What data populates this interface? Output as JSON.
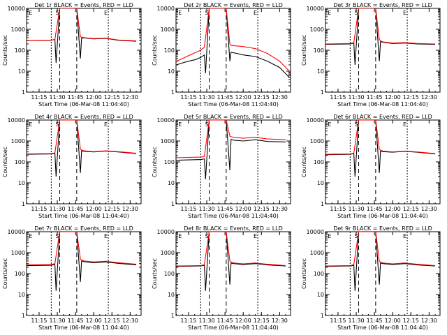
{
  "xlabel": "Start Time (06-Mar-08 11:04:40)",
  "ylabel": "Counts/sec",
  "x_tick_labels": [
    "11:15",
    "11:30",
    "11:45",
    "12:00",
    "12:15",
    "12:30"
  ],
  "y_tick_labels": [
    "1",
    "10",
    "100",
    "1000",
    "10000"
  ],
  "colors": {
    "events": "#000000",
    "lld": "#ff0000",
    "axes": "#000000",
    "background": "#ffffff"
  },
  "chart_data": [
    {
      "type": "line",
      "title": "Det 1r BLACK = Events, RED = LLD",
      "yscale": "log",
      "ylim": [
        1,
        10000
      ],
      "xlim": [
        "11:04:40",
        "12:39:00"
      ],
      "grid": false,
      "markers": [
        "E",
        "S",
        "E"
      ],
      "series": [
        {
          "name": "Events",
          "x": [
            "11:05",
            "11:25",
            "11:28",
            "11:29",
            "11:32",
            "11:46",
            "11:49",
            "11:50",
            "11:52",
            "12:00",
            "12:10",
            "12:20",
            "12:35"
          ],
          "values": [
            290,
            300,
            330,
            25,
            10000,
            10000,
            40,
            380,
            390,
            350,
            370,
            300,
            270
          ]
        },
        {
          "name": "LLD",
          "x": [
            "11:05",
            "11:25",
            "11:28",
            "11:32",
            "11:46",
            "11:49",
            "11:50",
            "11:52",
            "12:00",
            "12:10",
            "12:20",
            "12:35"
          ],
          "values": [
            290,
            300,
            330,
            10000,
            10000,
            450,
            420,
            400,
            360,
            380,
            310,
            280
          ]
        }
      ]
    },
    {
      "type": "line",
      "title": "Det 2r BLACK = Events, RED = LLD",
      "yscale": "log",
      "ylim": [
        1,
        10000
      ],
      "xlim": [
        "11:04:40",
        "12:39:00"
      ],
      "grid": false,
      "markers": [
        "E",
        "S",
        "E"
      ],
      "series": [
        {
          "name": "Events",
          "x": [
            "11:05",
            "11:10",
            "11:15",
            "11:20",
            "11:25",
            "11:28",
            "11:29",
            "11:32",
            "11:46",
            "11:49",
            "11:50",
            "11:55",
            "12:00",
            "12:10",
            "12:20",
            "12:30",
            "12:38"
          ],
          "values": [
            20,
            25,
            30,
            35,
            45,
            60,
            8,
            10000,
            10000,
            30,
            80,
            70,
            60,
            50,
            30,
            15,
            5
          ]
        },
        {
          "name": "LLD",
          "x": [
            "11:05",
            "11:10",
            "11:15",
            "11:20",
            "11:25",
            "11:28",
            "11:32",
            "11:46",
            "11:49",
            "11:50",
            "11:55",
            "12:00",
            "12:10",
            "12:20",
            "12:30",
            "12:38"
          ],
          "values": [
            30,
            40,
            55,
            75,
            100,
            140,
            10000,
            10000,
            200,
            170,
            160,
            150,
            120,
            70,
            30,
            10
          ]
        }
      ]
    },
    {
      "type": "line",
      "title": "Det 3r BLACK = Events, RED = LLD",
      "yscale": "log",
      "ylim": [
        1,
        10000
      ],
      "xlim": [
        "11:04:40",
        "12:39:00"
      ],
      "grid": false,
      "markers": [
        "E",
        "S",
        "E"
      ],
      "series": [
        {
          "name": "Events",
          "x": [
            "11:05",
            "11:25",
            "11:28",
            "11:29",
            "11:32",
            "11:46",
            "11:49",
            "11:50",
            "11:52",
            "12:00",
            "12:10",
            "12:20",
            "12:35"
          ],
          "values": [
            190,
            200,
            220,
            20,
            10000,
            10000,
            30,
            260,
            240,
            210,
            220,
            200,
            190
          ]
        },
        {
          "name": "LLD",
          "x": [
            "11:05",
            "11:25",
            "11:28",
            "11:32",
            "11:46",
            "11:49",
            "11:50",
            "11:52",
            "12:00",
            "12:10",
            "12:20",
            "12:35"
          ],
          "values": [
            200,
            210,
            230,
            10000,
            10000,
            330,
            280,
            250,
            220,
            230,
            210,
            200
          ]
        }
      ]
    },
    {
      "type": "line",
      "title": "Det 4r BLACK = Events, RED = LLD",
      "yscale": "log",
      "ylim": [
        1,
        10000
      ],
      "xlim": [
        "11:04:40",
        "12:39:00"
      ],
      "grid": false,
      "markers": [
        "E",
        "S",
        "E"
      ],
      "series": [
        {
          "name": "Events",
          "x": [
            "11:05",
            "11:25",
            "11:28",
            "11:29",
            "11:32",
            "11:46",
            "11:49",
            "11:50",
            "11:52",
            "12:00",
            "12:10",
            "12:20",
            "12:35"
          ],
          "values": [
            230,
            240,
            260,
            20,
            10000,
            10000,
            30,
            340,
            320,
            300,
            330,
            300,
            250
          ]
        },
        {
          "name": "LLD",
          "x": [
            "11:05",
            "11:25",
            "11:28",
            "11:32",
            "11:46",
            "11:49",
            "11:50",
            "11:52",
            "12:00",
            "12:10",
            "12:20",
            "12:35"
          ],
          "values": [
            240,
            250,
            270,
            10000,
            10000,
            420,
            370,
            340,
            310,
            340,
            310,
            260
          ]
        }
      ]
    },
    {
      "type": "line",
      "title": "Det 5r BLACK = Events, RED = LLD",
      "yscale": "log",
      "ylim": [
        1,
        10000
      ],
      "xlim": [
        "11:04:40",
        "12:39:00"
      ],
      "grid": false,
      "markers": [
        "E",
        "S",
        "E"
      ],
      "series": [
        {
          "name": "Events",
          "x": [
            "11:05",
            "11:25",
            "11:28",
            "11:29",
            "11:32",
            "11:46",
            "11:49",
            "11:50",
            "11:52",
            "12:00",
            "12:10",
            "12:20",
            "12:35"
          ],
          "values": [
            120,
            130,
            140,
            15,
            10000,
            10000,
            40,
            1200,
            1100,
            1000,
            1150,
            950,
            900
          ]
        },
        {
          "name": "LLD",
          "x": [
            "11:05",
            "11:25",
            "11:28",
            "11:32",
            "11:46",
            "11:49",
            "11:50",
            "11:52",
            "12:00",
            "12:10",
            "12:20",
            "12:35"
          ],
          "values": [
            160,
            170,
            180,
            10000,
            10000,
            1700,
            1600,
            1500,
            1350,
            1500,
            1250,
            1150
          ]
        }
      ]
    },
    {
      "type": "line",
      "title": "Det 6r BLACK = Events, RED = LLD",
      "yscale": "log",
      "ylim": [
        1,
        10000
      ],
      "xlim": [
        "11:04:40",
        "12:39:00"
      ],
      "grid": false,
      "markers": [
        "E",
        "S",
        "E"
      ],
      "series": [
        {
          "name": "Events",
          "x": [
            "11:05",
            "11:25",
            "11:28",
            "11:29",
            "11:32",
            "11:46",
            "11:49",
            "11:50",
            "11:52",
            "12:00",
            "12:10",
            "12:20",
            "12:35"
          ],
          "values": [
            220,
            230,
            250,
            20,
            10000,
            10000,
            30,
            330,
            310,
            290,
            320,
            290,
            240
          ]
        },
        {
          "name": "LLD",
          "x": [
            "11:05",
            "11:25",
            "11:28",
            "11:32",
            "11:46",
            "11:49",
            "11:50",
            "11:52",
            "12:00",
            "12:10",
            "12:20",
            "12:35"
          ],
          "values": [
            230,
            240,
            260,
            10000,
            10000,
            420,
            360,
            330,
            300,
            330,
            300,
            250
          ]
        }
      ]
    },
    {
      "type": "line",
      "title": "Det 7r BLACK = Events, RED = LLD",
      "yscale": "log",
      "ylim": [
        1,
        10000
      ],
      "xlim": [
        "11:04:40",
        "12:39:00"
      ],
      "grid": false,
      "markers": [
        "E",
        "S",
        "E"
      ],
      "series": [
        {
          "name": "Events",
          "x": [
            "11:05",
            "11:25",
            "11:28",
            "11:29",
            "11:32",
            "11:46",
            "11:49",
            "11:50",
            "11:52",
            "12:00",
            "12:10",
            "12:20",
            "12:35"
          ],
          "values": [
            240,
            250,
            270,
            15,
            10000,
            10000,
            40,
            400,
            370,
            330,
            360,
            310,
            260
          ]
        },
        {
          "name": "LLD",
          "x": [
            "11:05",
            "11:25",
            "11:28",
            "11:32",
            "11:46",
            "11:49",
            "11:50",
            "11:52",
            "12:00",
            "12:10",
            "12:20",
            "12:35"
          ],
          "values": [
            260,
            270,
            300,
            10000,
            10000,
            500,
            440,
            400,
            360,
            390,
            330,
            280
          ]
        }
      ]
    },
    {
      "type": "line",
      "title": "Det 8r BLACK = Events, RED = LLD",
      "yscale": "log",
      "ylim": [
        1,
        10000
      ],
      "xlim": [
        "11:04:40",
        "12:39:00"
      ],
      "grid": false,
      "markers": [
        "E",
        "S",
        "E"
      ],
      "series": [
        {
          "name": "Events",
          "x": [
            "11:05",
            "11:25",
            "11:28",
            "11:29",
            "11:32",
            "11:46",
            "11:49",
            "11:50",
            "11:52",
            "12:00",
            "12:10",
            "12:20",
            "12:35"
          ],
          "values": [
            220,
            230,
            250,
            15,
            10000,
            10000,
            30,
            320,
            300,
            270,
            300,
            260,
            230
          ]
        },
        {
          "name": "LLD",
          "x": [
            "11:05",
            "11:25",
            "11:28",
            "11:32",
            "11:46",
            "11:49",
            "11:50",
            "11:52",
            "12:00",
            "12:10",
            "12:20",
            "12:35"
          ],
          "values": [
            230,
            240,
            270,
            10000,
            10000,
            400,
            350,
            320,
            290,
            320,
            280,
            240
          ]
        }
      ]
    },
    {
      "type": "line",
      "title": "Det 9r BLACK = Events, RED = LLD",
      "yscale": "log",
      "ylim": [
        1,
        10000
      ],
      "xlim": [
        "11:04:40",
        "12:39:00"
      ],
      "grid": false,
      "markers": [
        "E",
        "S",
        "E"
      ],
      "series": [
        {
          "name": "Events",
          "x": [
            "11:05",
            "11:25",
            "11:28",
            "11:29",
            "11:32",
            "11:46",
            "11:49",
            "11:50",
            "11:52",
            "12:00",
            "12:10",
            "12:20",
            "12:35"
          ],
          "values": [
            220,
            230,
            250,
            15,
            10000,
            10000,
            30,
            320,
            300,
            270,
            300,
            260,
            230
          ]
        },
        {
          "name": "LLD",
          "x": [
            "11:05",
            "11:25",
            "11:28",
            "11:32",
            "11:46",
            "11:49",
            "11:50",
            "11:52",
            "12:00",
            "12:10",
            "12:20",
            "12:35"
          ],
          "values": [
            230,
            240,
            270,
            10000,
            10000,
            400,
            350,
            320,
            290,
            320,
            280,
            240
          ]
        }
      ]
    }
  ]
}
